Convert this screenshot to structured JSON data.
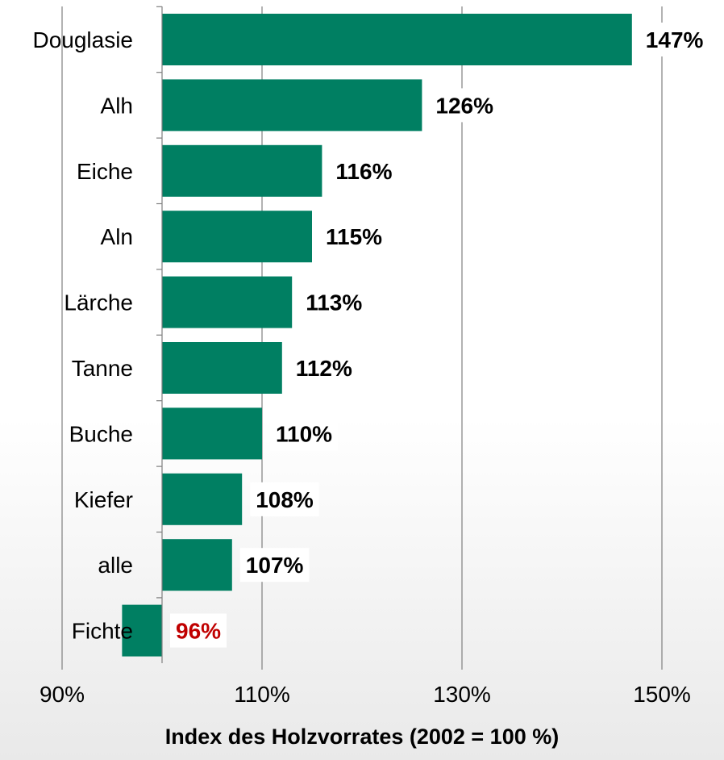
{
  "chart_data": {
    "type": "bar",
    "orientation": "horizontal",
    "categories": [
      "Douglasie",
      "Alh",
      "Eiche",
      "Aln",
      "Lärche",
      "Tanne",
      "Buche",
      "Kiefer",
      "alle",
      "Fichte"
    ],
    "values": [
      147,
      126,
      116,
      115,
      113,
      112,
      110,
      108,
      107,
      96
    ],
    "value_labels": [
      "147%",
      "126%",
      "116%",
      "115%",
      "113%",
      "112%",
      "110%",
      "108%",
      "107%",
      "96%"
    ],
    "baseline": 100,
    "xlim": [
      90,
      150
    ],
    "xticks": [
      90,
      110,
      130,
      150
    ],
    "xtick_labels": [
      "90%",
      "110%",
      "130%",
      "150%"
    ],
    "xlabel": "Index des Holzvorrates (2002 = 100 %)",
    "grid": "vertical",
    "colors": {
      "bar": "#007f62",
      "label": "#000000",
      "highlight_label": "#c00000",
      "grid": "#7f7f7f"
    },
    "highlight_category": "Fichte"
  }
}
